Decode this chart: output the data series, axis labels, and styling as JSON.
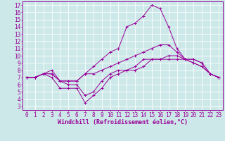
{
  "xlabel": "Windchill (Refroidissement éolien,°C)",
  "background_color": "#cde8e8",
  "grid_color": "#b0d0d0",
  "line_color": "#990099",
  "x_ticks": [
    0,
    1,
    2,
    3,
    4,
    5,
    6,
    7,
    8,
    9,
    10,
    11,
    12,
    13,
    14,
    15,
    16,
    17,
    18,
    19,
    20,
    21,
    22,
    23
  ],
  "y_ticks": [
    3,
    4,
    5,
    6,
    7,
    8,
    9,
    10,
    11,
    12,
    13,
    14,
    15,
    16,
    17
  ],
  "xlim": [
    -0.5,
    23.5
  ],
  "ylim": [
    2.5,
    17.5
  ],
  "line1_y": [
    7.0,
    7.0,
    7.5,
    7.5,
    6.5,
    6.5,
    6.5,
    7.5,
    8.5,
    9.5,
    10.5,
    11.0,
    14.0,
    14.5,
    15.5,
    17.0,
    16.5,
    14.0,
    11.0,
    9.5,
    9.0,
    8.5,
    7.5,
    7.0
  ],
  "line2_y": [
    7.0,
    7.0,
    7.5,
    7.5,
    6.5,
    6.5,
    6.5,
    7.5,
    7.5,
    8.0,
    8.5,
    9.0,
    9.5,
    10.0,
    10.5,
    11.0,
    11.5,
    11.5,
    10.5,
    9.5,
    9.0,
    8.5,
    7.5,
    7.0
  ],
  "line3_y": [
    7.0,
    7.0,
    7.5,
    8.0,
    6.5,
    6.0,
    6.0,
    4.5,
    5.0,
    6.5,
    7.5,
    8.0,
    8.0,
    8.5,
    9.5,
    9.5,
    9.5,
    10.0,
    10.0,
    9.5,
    9.5,
    9.0,
    7.5,
    7.0
  ],
  "line4_y": [
    7.0,
    7.0,
    7.5,
    7.0,
    5.5,
    5.5,
    5.5,
    3.5,
    4.5,
    5.5,
    7.0,
    7.5,
    8.0,
    8.0,
    8.5,
    9.5,
    9.5,
    9.5,
    9.5,
    9.5,
    9.5,
    9.0,
    7.5,
    7.0
  ],
  "tick_fontsize": 5.5,
  "label_fontsize": 6.0
}
